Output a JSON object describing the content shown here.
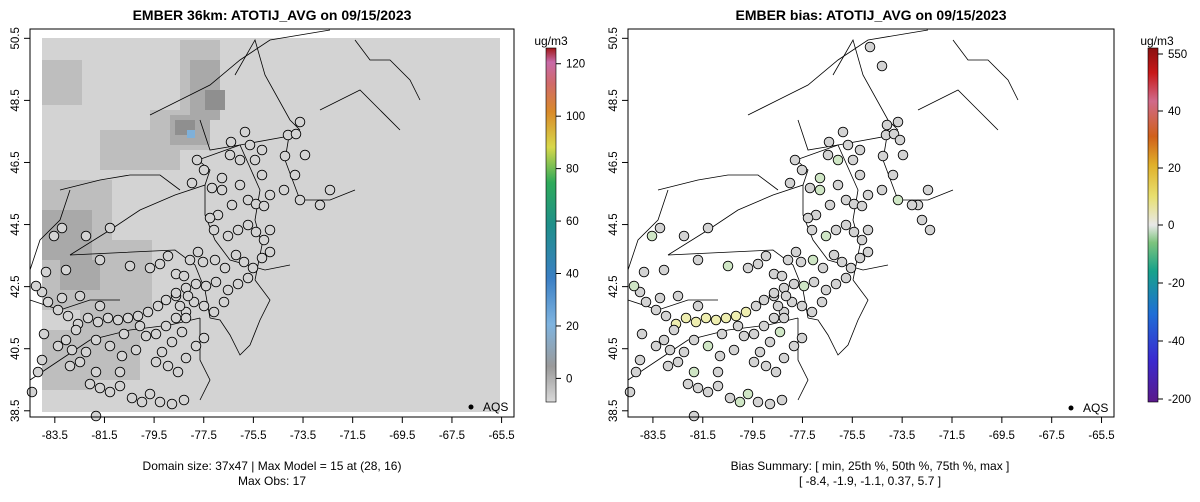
{
  "left_panel": {
    "title": "EMBER 36km: ATOTIJ_AVG on 09/15/2023",
    "colorbar_unit": "ug/m3",
    "colorbar_ticks": [
      "120",
      "100",
      "80",
      "60",
      "40",
      "20",
      "0"
    ],
    "colorbar_tick_values": [
      120,
      100,
      80,
      60,
      40,
      20,
      0
    ],
    "colorbar_range": [
      -9,
      126
    ],
    "footer_line1": "Domain size: 37x47 | Max Model = 15 at (28, 16)",
    "footer_line2": "Max Obs: 17",
    "legend_label": "AQS"
  },
  "right_panel": {
    "title": "EMBER bias: ATOTIJ_AVG on 09/15/2023",
    "colorbar_unit": "ug/m3",
    "colorbar_ticks": [
      "550",
      "40",
      "20",
      "0",
      "-20",
      "-40",
      "-200"
    ],
    "footer_line1": "Bias Summary: [ min, 25th %, 50th %, 75th %, max ]",
    "footer_line2": "[ -8.4,   -1.9,   -1.1,   0.37,   5.7 ]",
    "legend_label": "AQS"
  },
  "axes": {
    "x_ticks": [
      "-83.5",
      "-81.5",
      "-79.5",
      "-77.5",
      "-75.5",
      "-73.5",
      "-71.5",
      "-69.5",
      "-67.5",
      "-65.5"
    ],
    "x_tick_values": [
      -83.5,
      -81.5,
      -79.5,
      -77.5,
      -75.5,
      -73.5,
      -71.5,
      -69.5,
      -67.5,
      -65.5
    ],
    "y_ticks": [
      "50.5",
      "48.5",
      "46.5",
      "44.5",
      "42.5",
      "40.5",
      "38.5"
    ],
    "y_tick_values": [
      50.5,
      48.5,
      46.5,
      44.5,
      42.5,
      40.5,
      38.5
    ],
    "x_range": [
      -84.5,
      -65
    ],
    "y_range": [
      38.3,
      50.8
    ]
  },
  "colors": {
    "model_bg": "#d3d3d3",
    "model_mid": "#bebebe",
    "model_dark": "#a9a9a9",
    "model_darker": "#8f8f8f",
    "station_fill": "#d3d3d3",
    "bias_green": "#cfe6c5",
    "bias_yellow": "#eeeeb0"
  }
}
